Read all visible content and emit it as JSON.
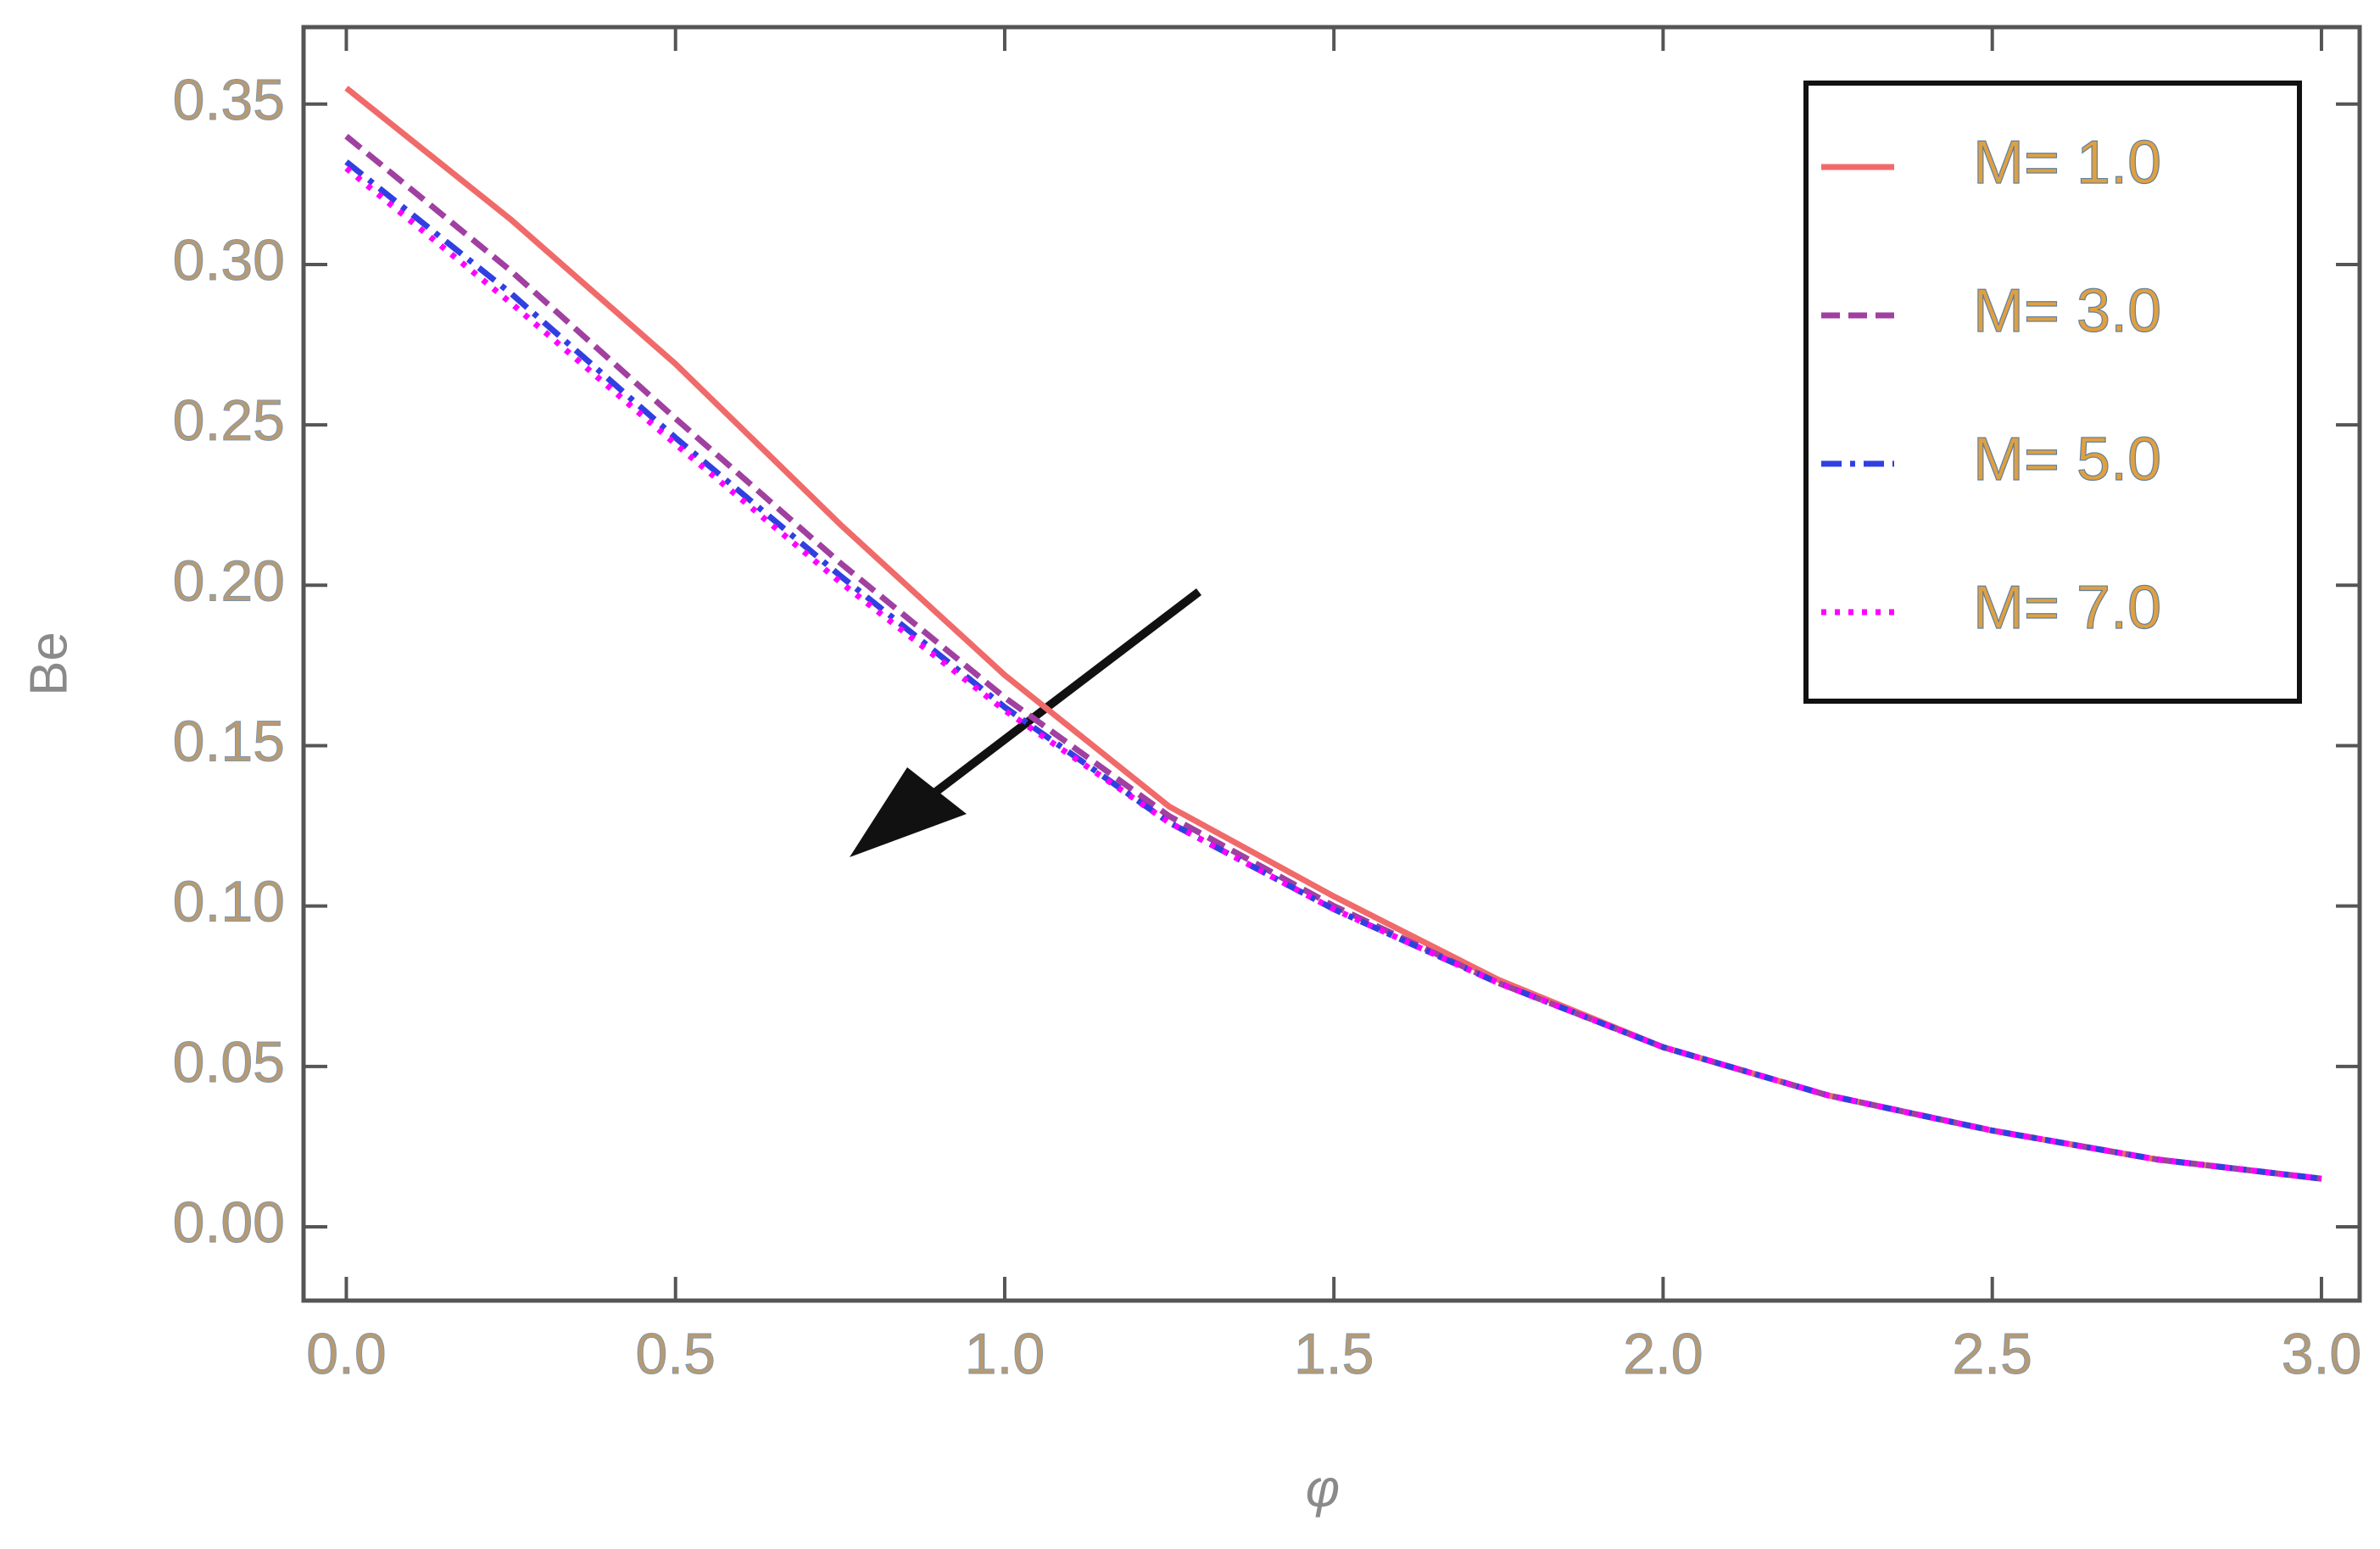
{
  "chart_data": {
    "type": "line",
    "x_label": "φ",
    "y_label": "Be",
    "x": [
      0,
      0.25,
      0.5,
      0.75,
      1.0,
      1.25,
      1.5,
      1.75,
      2.0,
      2.25,
      2.5,
      2.75,
      3.0
    ],
    "series": [
      {
        "name": "M= 1.0",
        "color": "#f06a6a",
        "style": "solid",
        "values": [
          0.355,
          0.314,
          0.269,
          0.219,
          0.172,
          0.131,
          0.103,
          0.077,
          0.056,
          0.041,
          0.03,
          0.021,
          0.015
        ]
      },
      {
        "name": "M= 3.0",
        "color": "#a040a0",
        "style": "dashed",
        "values": [
          0.34,
          0.298,
          0.252,
          0.207,
          0.165,
          0.128,
          0.1,
          0.076,
          0.056,
          0.041,
          0.03,
          0.021,
          0.015
        ]
      },
      {
        "name": "M= 5.0",
        "color": "#3040e0",
        "style": "dashdot",
        "values": [
          0.332,
          0.291,
          0.246,
          0.203,
          0.162,
          0.126,
          0.099,
          0.076,
          0.056,
          0.041,
          0.03,
          0.021,
          0.015
        ]
      },
      {
        "name": "M= 7.0",
        "color": "#ff00ff",
        "style": "dotted",
        "values": [
          0.33,
          0.288,
          0.244,
          0.201,
          0.161,
          0.126,
          0.099,
          0.076,
          0.056,
          0.041,
          0.03,
          0.021,
          0.015
        ]
      }
    ],
    "xlim": [
      -0.065,
      3.058
    ],
    "ylim": [
      -0.023,
      0.374
    ],
    "xticks": [
      {
        "value": 0,
        "label": "0.0"
      },
      {
        "value": 0.5,
        "label": "0.5"
      },
      {
        "value": 1,
        "label": "1.0"
      },
      {
        "value": 1.5,
        "label": "1.5"
      },
      {
        "value": 2,
        "label": "2.0"
      },
      {
        "value": 2.5,
        "label": "2.5"
      },
      {
        "value": 3,
        "label": "3.0"
      }
    ],
    "yticks": [
      {
        "value": 0,
        "label": "0.00"
      },
      {
        "value": 0.05,
        "label": "0.05"
      },
      {
        "value": 0.1,
        "label": "0.10"
      },
      {
        "value": 0.15,
        "label": "0.15"
      },
      {
        "value": 0.2,
        "label": "0.20"
      },
      {
        "value": 0.25,
        "label": "0.25"
      },
      {
        "value": 0.3,
        "label": "0.30"
      },
      {
        "value": 0.35,
        "label": "0.35"
      }
    ],
    "grid": false,
    "legend_position": "top-right"
  }
}
